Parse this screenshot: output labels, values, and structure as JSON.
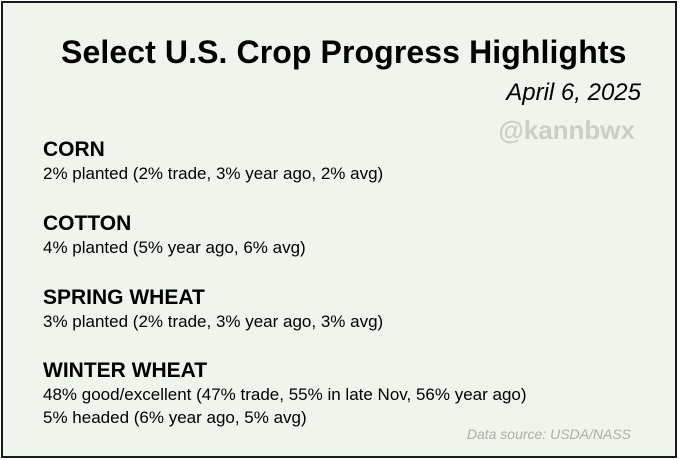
{
  "title": "Select U.S. Crop Progress Highlights",
  "date": "April 6, 2025",
  "handle": "@kannbwx",
  "crops": [
    {
      "name": "CORN",
      "lines": [
        "2% planted (2% trade, 3% year ago, 2% avg)"
      ]
    },
    {
      "name": "COTTON",
      "lines": [
        "4% planted (5% year ago, 6% avg)"
      ]
    },
    {
      "name": "SPRING WHEAT",
      "lines": [
        "3% planted (2% trade, 3% year ago, 3% avg)"
      ]
    },
    {
      "name": "WINTER WHEAT",
      "lines": [
        "48% good/excellent (47% trade, 55% in late Nov, 56% year ago)",
        "5% headed (6% year ago, 5% avg)"
      ]
    }
  ],
  "source": "Data source: USDA/NASS",
  "colors": {
    "background": "#eff5ec",
    "border": "#1a1a1a",
    "watermark": "#c9cfc6",
    "source_text": "#a9afa6"
  }
}
